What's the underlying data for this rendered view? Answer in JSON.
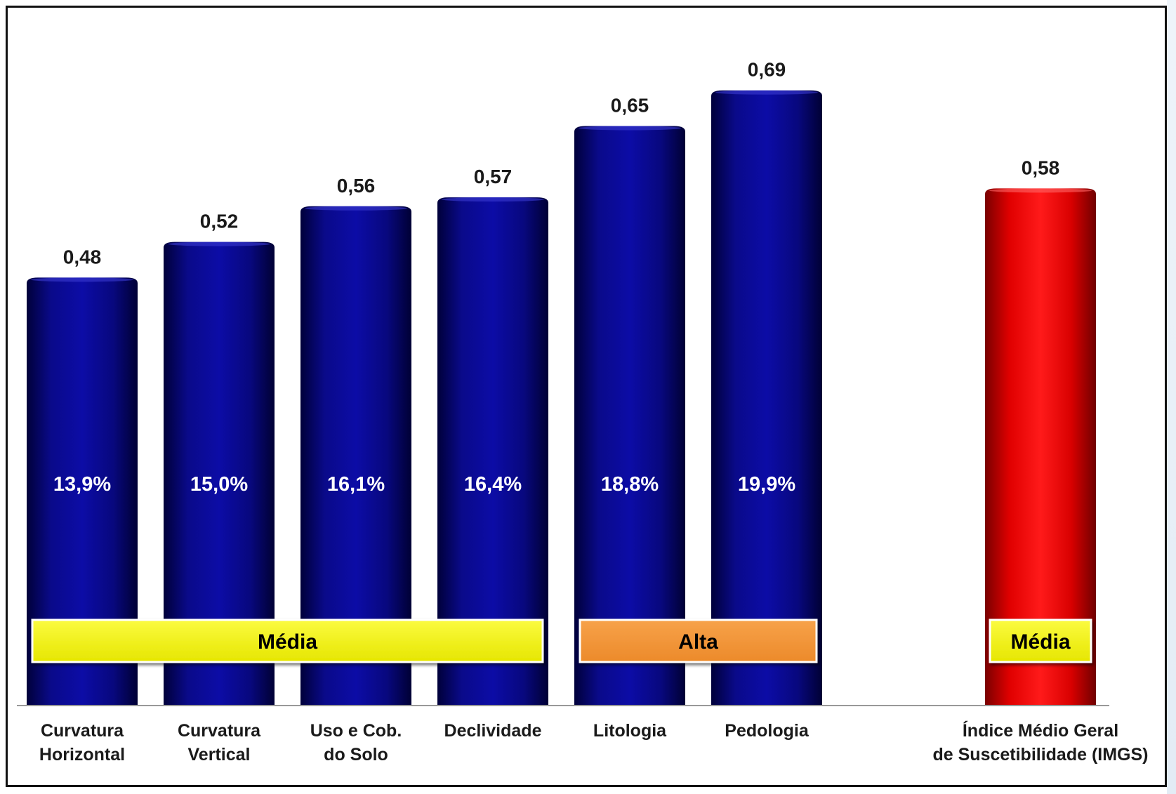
{
  "chart_data": {
    "type": "bar",
    "categories": [
      [
        "Curvatura",
        "Horizontal"
      ],
      [
        "Curvatura",
        "Vertical"
      ],
      [
        "Uso e Cob.",
        "do Solo"
      ],
      [
        "Declividade"
      ],
      [
        "Litologia"
      ],
      [
        "Pedologia"
      ],
      [
        "Índice Médio Geral",
        "de Suscetibilidade (IMGS)"
      ]
    ],
    "values": [
      0.48,
      0.52,
      0.56,
      0.57,
      0.65,
      0.69,
      0.58
    ],
    "value_labels": [
      "0,48",
      "0,52",
      "0,56",
      "0,57",
      "0,65",
      "0,69",
      "0,58"
    ],
    "percent_labels": [
      "13,9%",
      "15,0%",
      "16,1%",
      "16,4%",
      "18,8%",
      "19,9%",
      ""
    ],
    "bar_colors": [
      "#0a0a8c",
      "#0a0a8c",
      "#0a0a8c",
      "#0a0a8c",
      "#0a0a8c",
      "#0a0a8c",
      "#e60000"
    ],
    "class_bands": [
      {
        "label": "Média",
        "from_index": 0,
        "to_index": 3,
        "color": "#f2f200"
      },
      {
        "label": "Alta",
        "from_index": 4,
        "to_index": 5,
        "color": "#f29233"
      },
      {
        "label": "Média",
        "from_index": 6,
        "to_index": 6,
        "color": "#f2f200"
      }
    ],
    "ylim": [
      0,
      0.8
    ],
    "grid": false,
    "title": "",
    "xlabel": "",
    "ylabel": ""
  }
}
